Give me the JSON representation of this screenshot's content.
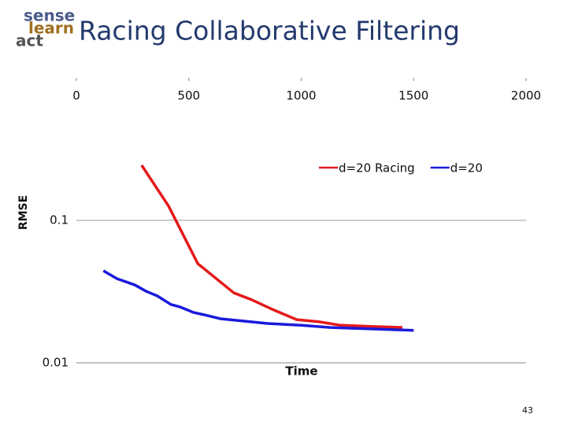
{
  "logo": [
    "sense",
    "learn",
    "act"
  ],
  "page_number": "43",
  "chart_data": {
    "type": "line",
    "title": "Racing Collaborative Filtering",
    "x_label": "Time",
    "y_label": "RMSE",
    "xlim": [
      0,
      2000
    ],
    "xticks": [
      0,
      500,
      1000,
      1500,
      2000
    ],
    "ylim": [
      0.01,
      1
    ],
    "yticks": [
      0.01,
      0.1
    ],
    "y_scale": "log",
    "grid": true,
    "legend": "top-right",
    "series": [
      {
        "name": "d=20 Racing",
        "color": "#e41a1c",
        "x": [
          290,
          410,
          540,
          700,
          780,
          870,
          980,
          1080,
          1170,
          1310,
          1450
        ],
        "values": [
          0.244,
          0.126,
          0.0497,
          0.031,
          0.0277,
          0.0238,
          0.0201,
          0.0194,
          0.0184,
          0.018,
          0.0177
        ]
      },
      {
        "name": "d=20",
        "color": "#1a1adc",
        "x": [
          120,
          180,
          260,
          310,
          360,
          420,
          460,
          520,
          570,
          640,
          750,
          850,
          990,
          1130,
          1310,
          1500
        ],
        "values": [
          0.0443,
          0.039,
          0.0352,
          0.0318,
          0.0295,
          0.0257,
          0.0247,
          0.0226,
          0.0217,
          0.0204,
          0.0196,
          0.0189,
          0.0184,
          0.0177,
          0.0173,
          0.0169
        ]
      }
    ]
  }
}
